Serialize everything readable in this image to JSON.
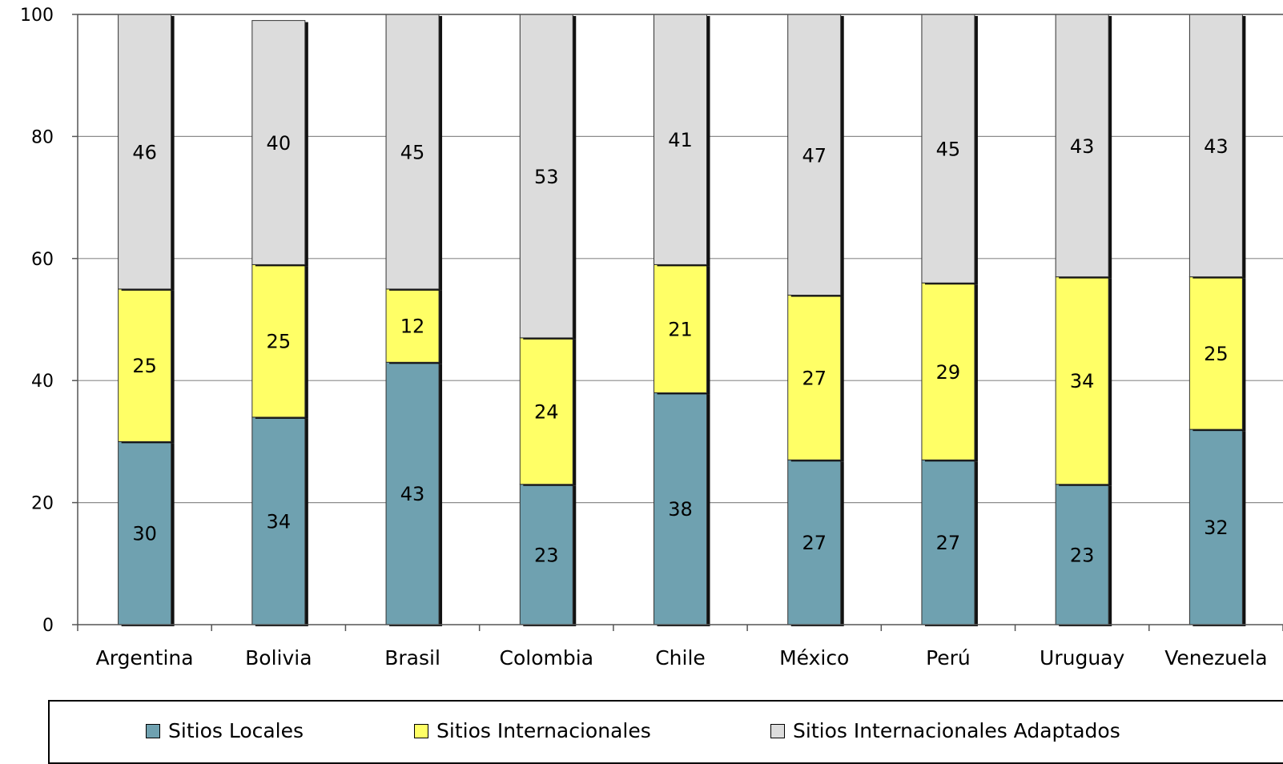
{
  "chart_data": {
    "type": "bar",
    "stacked": true,
    "categories": [
      "Argentina",
      "Bolivia",
      "Brasil",
      "Colombia",
      "Chile",
      "México",
      "Perú",
      "Uruguay",
      "Venezuela"
    ],
    "series": [
      {
        "name": "Sitios Locales",
        "color": "#6fa1b0",
        "values": [
          30,
          34,
          43,
          23,
          38,
          27,
          27,
          23,
          32
        ]
      },
      {
        "name": "Sitios Internacionales",
        "color": "#ffff66",
        "values": [
          25,
          25,
          12,
          24,
          21,
          27,
          29,
          34,
          25
        ]
      },
      {
        "name": "Sitios Internacionales Adaptados",
        "color": "#dcdcdc",
        "values": [
          46,
          40,
          45,
          53,
          41,
          47,
          45,
          43,
          43
        ]
      }
    ],
    "ylim": [
      0,
      100
    ],
    "yticks": [
      0,
      20,
      40,
      60,
      80,
      100
    ],
    "grid": true,
    "legend_position": "bottom"
  },
  "legend": {
    "items": [
      "Sitios Locales",
      "Sitios Internacionales",
      "Sitios Internacionales Adaptados"
    ]
  }
}
